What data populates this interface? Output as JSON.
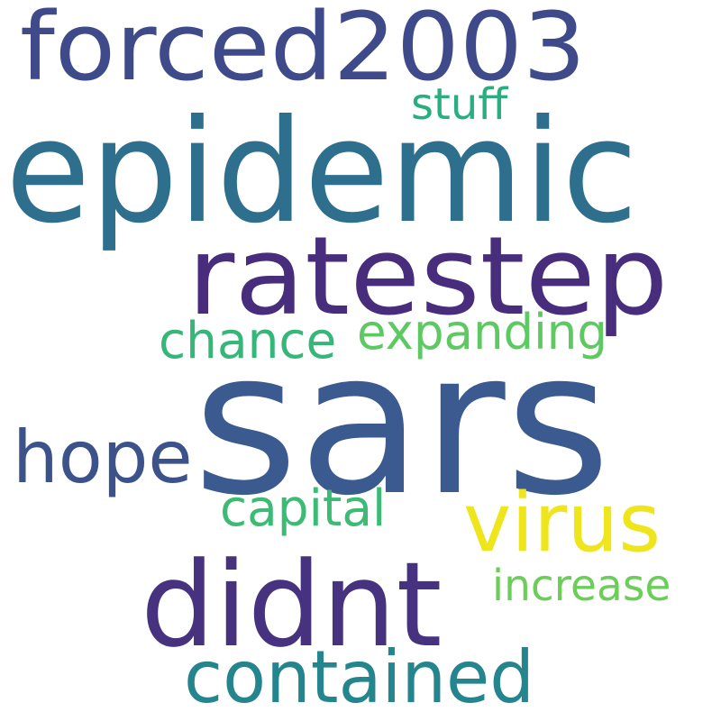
{
  "words": [
    {
      "text": "sars",
      "color": "#3b5a8f"
    },
    {
      "text": "epidemic",
      "color": "#2e6f8e"
    },
    {
      "text": "ratestep",
      "color": "#472d7b"
    },
    {
      "text": "forced2003",
      "color": "#3f4a8a"
    },
    {
      "text": "didnt",
      "color": "#46327e"
    },
    {
      "text": "virus",
      "color": "#efe51c"
    },
    {
      "text": "contained",
      "color": "#25858e"
    },
    {
      "text": "hope",
      "color": "#3b528b"
    },
    {
      "text": "chance",
      "color": "#35b779"
    },
    {
      "text": "expanding",
      "color": "#5ec962"
    },
    {
      "text": "capital",
      "color": "#3cbb75"
    },
    {
      "text": "increase",
      "color": "#6ccd5a"
    },
    {
      "text": "stuff",
      "color": "#29af7f"
    }
  ]
}
